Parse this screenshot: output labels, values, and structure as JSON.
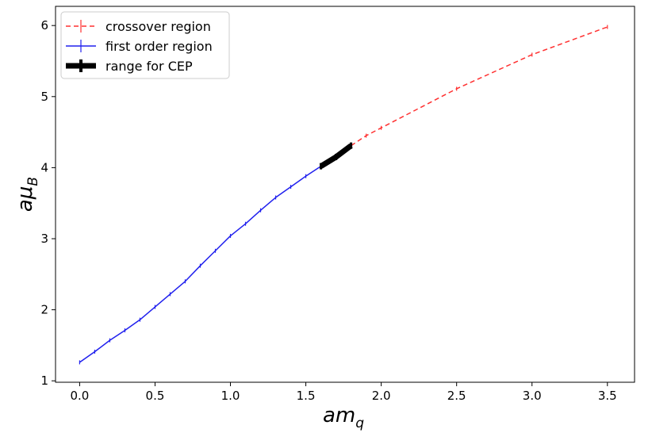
{
  "chart_data": {
    "type": "line",
    "xlabel": {
      "main": "am",
      "sub": "q"
    },
    "ylabel": {
      "main": "aμ",
      "sub": "B"
    },
    "xlim": [
      -0.16,
      3.68
    ],
    "ylim": [
      0.98,
      6.27
    ],
    "xticks": [
      {
        "value": 0.0,
        "label": "0.0"
      },
      {
        "value": 0.5,
        "label": "0.5"
      },
      {
        "value": 1.0,
        "label": "1.0"
      },
      {
        "value": 1.5,
        "label": "1.5"
      },
      {
        "value": 2.0,
        "label": "2.0"
      },
      {
        "value": 2.5,
        "label": "2.5"
      },
      {
        "value": 3.0,
        "label": "3.0"
      },
      {
        "value": 3.5,
        "label": "3.5"
      }
    ],
    "yticks": [
      {
        "value": 1,
        "label": "1"
      },
      {
        "value": 2,
        "label": "2"
      },
      {
        "value": 3,
        "label": "3"
      },
      {
        "value": 4,
        "label": "4"
      },
      {
        "value": 5,
        "label": "5"
      },
      {
        "value": 6,
        "label": "6"
      }
    ],
    "grid": false,
    "legend_position": "top-left",
    "series": [
      {
        "name": "crossover region",
        "color": "#ff3030",
        "style": "dashed",
        "error_bars": true,
        "x": [
          1.8,
          1.9,
          2.0,
          2.5,
          3.0,
          3.5
        ],
        "y": [
          4.31,
          4.45,
          4.56,
          5.11,
          5.59,
          5.98
        ]
      },
      {
        "name": "first order region",
        "color": "#2020ee",
        "style": "solid",
        "error_bars": true,
        "x": [
          0.0,
          0.1,
          0.2,
          0.3,
          0.4,
          0.5,
          0.6,
          0.7,
          0.8,
          0.9,
          1.0,
          1.1,
          1.2,
          1.3,
          1.4,
          1.5,
          1.6
        ],
        "y": [
          1.26,
          1.41,
          1.57,
          1.71,
          1.86,
          2.04,
          2.22,
          2.4,
          2.62,
          2.83,
          3.04,
          3.21,
          3.4,
          3.58,
          3.73,
          3.88,
          4.02
        ]
      },
      {
        "name": "range for CEP",
        "color": "#000000",
        "style": "thick",
        "error_bars": true,
        "x": [
          1.6,
          1.7,
          1.8
        ],
        "y": [
          4.02,
          4.15,
          4.31
        ]
      }
    ]
  }
}
